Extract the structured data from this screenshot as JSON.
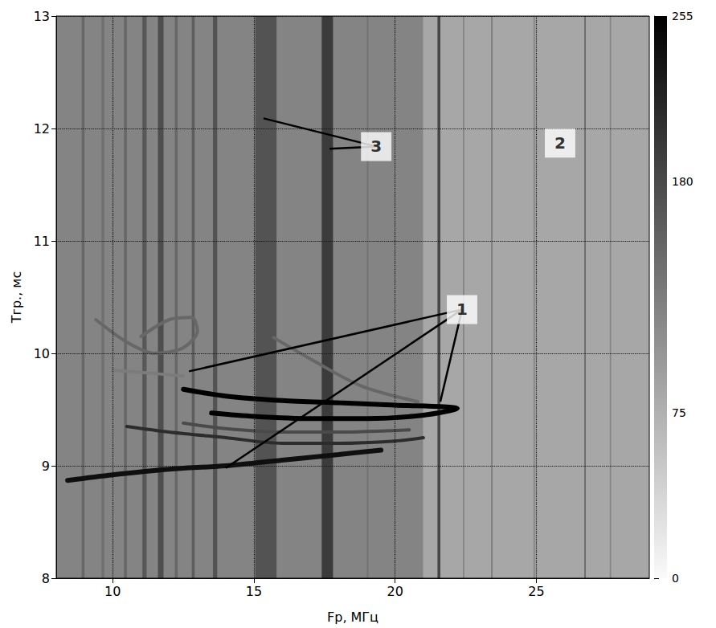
{
  "chart_data": {
    "type": "heatmap",
    "xlabel": "Fр, МГц",
    "ylabel": "Tгр., мс",
    "xlim": [
      8,
      29
    ],
    "xticks": [
      10,
      15,
      20,
      25
    ],
    "ylim": [
      8,
      13
    ],
    "yticks": [
      8,
      9,
      10,
      11,
      12,
      13
    ],
    "grid": true,
    "colorbar": {
      "range": [
        0,
        255
      ],
      "ticks": [
        0,
        75,
        180,
        255
      ]
    },
    "background": [
      {
        "from": 8,
        "to": 21,
        "value": 120
      },
      {
        "from": 21,
        "to": 29,
        "value": 85
      }
    ],
    "stripes": [
      {
        "from": 8.9,
        "to": 9.0,
        "value": 150
      },
      {
        "from": 9.6,
        "to": 9.7,
        "value": 140
      },
      {
        "from": 10.4,
        "to": 10.5,
        "value": 150
      },
      {
        "from": 11.05,
        "to": 11.2,
        "value": 165
      },
      {
        "from": 11.6,
        "to": 11.8,
        "value": 175
      },
      {
        "from": 12.2,
        "to": 12.3,
        "value": 150
      },
      {
        "from": 12.8,
        "to": 12.9,
        "value": 160
      },
      {
        "from": 13.55,
        "to": 13.7,
        "value": 170
      },
      {
        "from": 15.05,
        "to": 15.8,
        "value": 170
      },
      {
        "from": 17.4,
        "to": 17.8,
        "value": 195
      },
      {
        "from": 19.0,
        "to": 19.05,
        "value": 140
      },
      {
        "from": 21.5,
        "to": 21.6,
        "value": 185
      },
      {
        "from": 22.4,
        "to": 22.45,
        "value": 120
      },
      {
        "from": 23.4,
        "to": 23.45,
        "value": 130
      },
      {
        "from": 24.9,
        "to": 24.95,
        "value": 120
      },
      {
        "from": 26.7,
        "to": 26.75,
        "value": 150
      },
      {
        "from": 27.6,
        "to": 27.65,
        "value": 120
      }
    ],
    "traces": [
      {
        "intensity": 240,
        "values": [
          [
            8.4,
            8.87
          ],
          [
            10,
            8.92
          ],
          [
            12,
            8.97
          ],
          [
            14,
            9.0
          ],
          [
            16,
            9.05
          ],
          [
            18,
            9.1
          ],
          [
            19.5,
            9.14
          ]
        ]
      },
      {
        "intensity": 255,
        "values": [
          [
            12.5,
            9.68
          ],
          [
            14,
            9.62
          ],
          [
            16,
            9.58
          ],
          [
            18,
            9.56
          ],
          [
            20,
            9.54
          ],
          [
            22.2,
            9.51
          ],
          [
            21,
            9.45
          ],
          [
            19,
            9.42
          ],
          [
            17,
            9.42
          ],
          [
            15,
            9.44
          ],
          [
            13.5,
            9.47
          ]
        ]
      },
      {
        "intensity": 210,
        "values": [
          [
            10.5,
            9.35
          ],
          [
            12,
            9.3
          ],
          [
            14,
            9.25
          ],
          [
            16,
            9.2
          ],
          [
            18,
            9.2
          ],
          [
            20,
            9.22
          ],
          [
            21,
            9.25
          ]
        ]
      },
      {
        "intensity": 180,
        "values": [
          [
            12.5,
            9.38
          ],
          [
            14,
            9.33
          ],
          [
            16,
            9.3
          ],
          [
            18,
            9.3
          ],
          [
            20.5,
            9.32
          ]
        ]
      },
      {
        "intensity": 150,
        "values": [
          [
            9.4,
            10.3
          ],
          [
            10.5,
            10.1
          ],
          [
            11.5,
            10.0
          ],
          [
            12.5,
            10.05
          ],
          [
            13,
            10.2
          ],
          [
            12.8,
            10.32
          ],
          [
            12,
            10.3
          ],
          [
            11,
            10.15
          ]
        ]
      },
      {
        "intensity": 150,
        "values": [
          [
            15.7,
            10.14
          ],
          [
            17,
            9.95
          ],
          [
            18.8,
            9.71
          ],
          [
            20.8,
            9.57
          ]
        ]
      },
      {
        "intensity": 130,
        "values": [
          [
            10,
            9.85
          ],
          [
            11,
            9.83
          ],
          [
            12.5,
            9.8
          ]
        ]
      }
    ],
    "annotations": [
      {
        "text": "1",
        "x": 22.37,
        "y": 10.39,
        "targets": [
          [
            12.7,
            9.84
          ],
          [
            14.0,
            8.98
          ],
          [
            21.6,
            9.57
          ]
        ]
      },
      {
        "text": "3",
        "x": 19.33,
        "y": 11.84,
        "targets": [
          [
            15.34,
            12.09
          ],
          [
            17.68,
            11.82
          ]
        ]
      },
      {
        "text": "2",
        "x": 25.84,
        "y": 11.87,
        "targets": []
      }
    ]
  }
}
